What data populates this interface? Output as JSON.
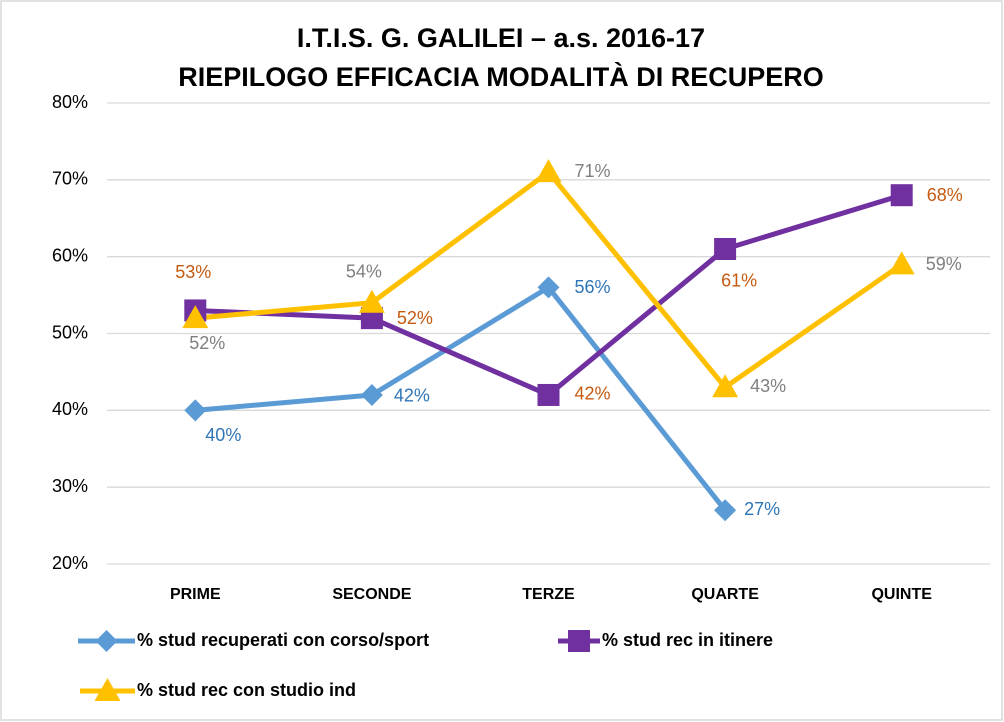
{
  "chart_data": {
    "type": "line",
    "title": "I.T.I.S. G. GALILEI – a.s. 2016-17",
    "subtitle": "RIEPILOGO EFFICACIA MODALITÀ DI RECUPERO",
    "categories": [
      "PRIME",
      "SECONDE",
      "TERZE",
      "QUARTE",
      "QUINTE"
    ],
    "series": [
      {
        "name": "% stud recuperati con corso/sport",
        "color": "#5b9bd5",
        "marker": "diamond",
        "label_color": "#2e75b6",
        "values": [
          40,
          42,
          56,
          27,
          null
        ],
        "value_labels": [
          "40%",
          "42%",
          "56%",
          "27%",
          null
        ]
      },
      {
        "name": "% stud rec in itinere",
        "color": "#7030a0",
        "marker": "square",
        "label_color": "#c55a11",
        "values": [
          53,
          52,
          42,
          61,
          68
        ],
        "value_labels": [
          "53%",
          "52%",
          "42%",
          "61%",
          "68%"
        ]
      },
      {
        "name": "% stud rec con studio ind",
        "color": "#ffc000",
        "marker": "triangle",
        "label_color": "#7f7f7f",
        "values": [
          52,
          54,
          71,
          43,
          59
        ],
        "value_labels": [
          "52%",
          "54%",
          "71%",
          "43%",
          "59%"
        ]
      }
    ],
    "ylim": [
      20,
      80
    ],
    "yticks": [
      {
        "value": 20,
        "label": "20%"
      },
      {
        "value": 30,
        "label": "30%"
      },
      {
        "value": 40,
        "label": "40%"
      },
      {
        "value": 50,
        "label": "50%"
      },
      {
        "value": 60,
        "label": "60%"
      },
      {
        "value": 70,
        "label": "70%"
      },
      {
        "value": 80,
        "label": "80%"
      }
    ],
    "grid": true,
    "legend": "bottom"
  }
}
